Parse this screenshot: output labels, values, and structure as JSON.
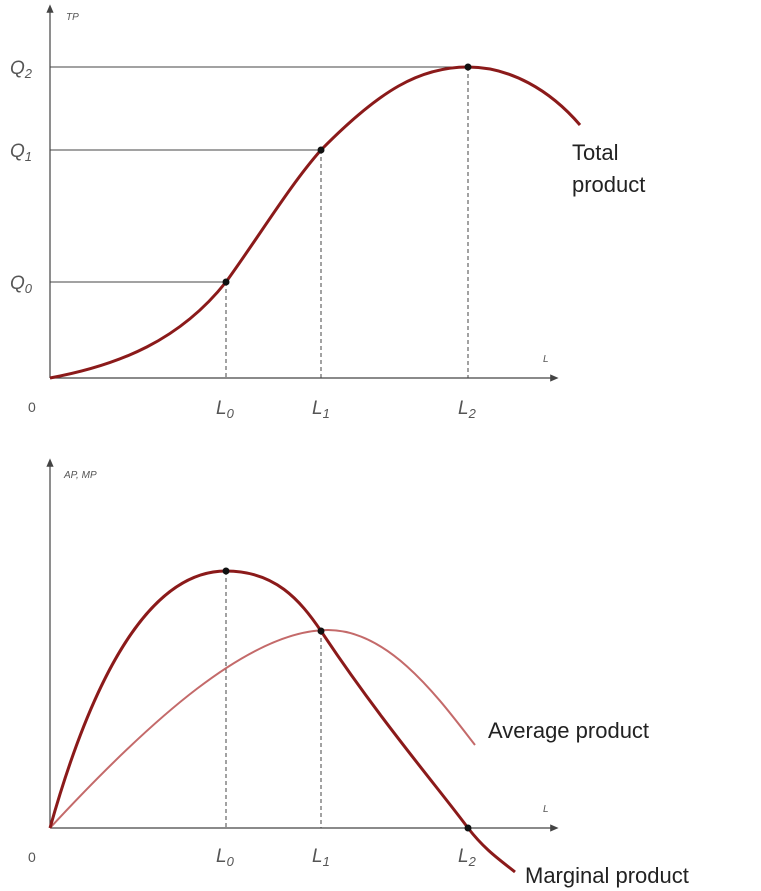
{
  "top": {
    "y_axis_label": "TP",
    "x_axis_label": "L",
    "origin": "0",
    "y_levels": [
      {
        "letter": "Q",
        "sub": "2"
      },
      {
        "letter": "Q",
        "sub": "1"
      },
      {
        "letter": "Q",
        "sub": "0"
      }
    ],
    "x_levels": [
      {
        "letter": "L",
        "sub": "0"
      },
      {
        "letter": "L",
        "sub": "1"
      },
      {
        "letter": "L",
        "sub": "2"
      }
    ],
    "curve_label": [
      "Total",
      "product"
    ]
  },
  "bottom": {
    "y_axis_label": "AP, MP",
    "x_axis_label": "L",
    "origin": "0",
    "x_levels": [
      {
        "letter": "L",
        "sub": "0"
      },
      {
        "letter": "L",
        "sub": "1"
      },
      {
        "letter": "L",
        "sub": "2"
      }
    ],
    "average_label": "Average product",
    "marginal_label": "Marginal product"
  }
}
